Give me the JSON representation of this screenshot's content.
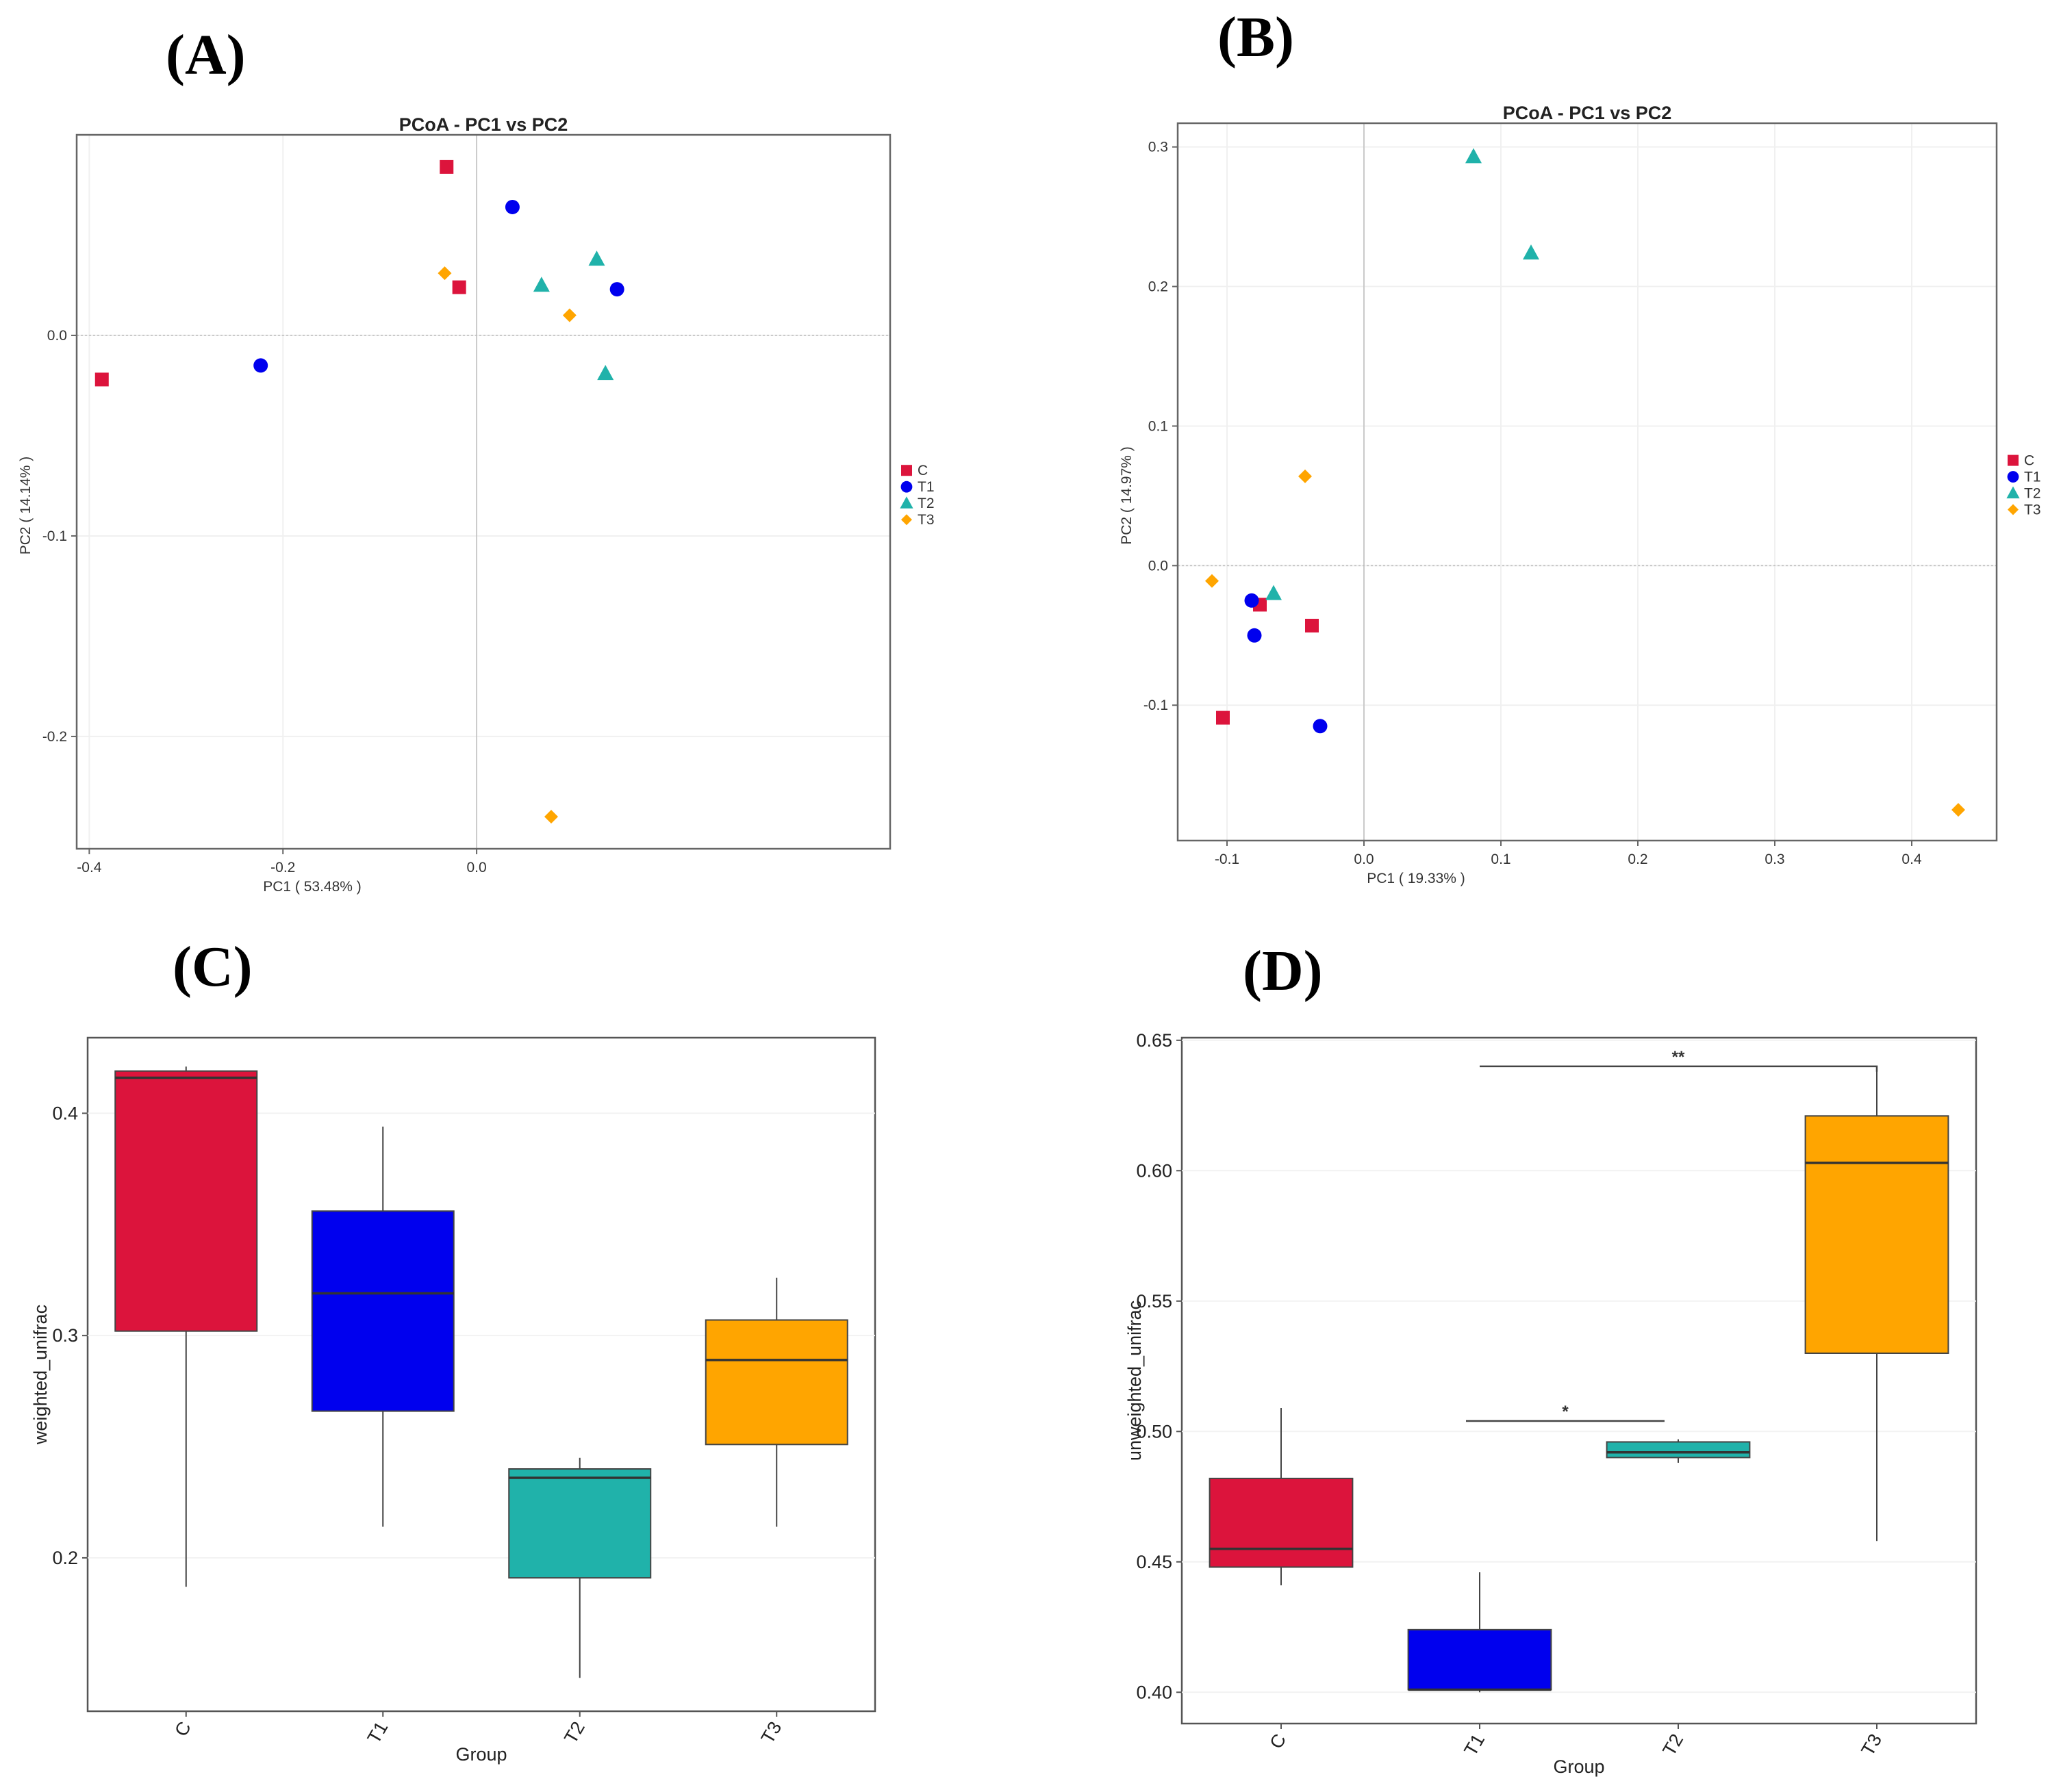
{
  "colors": {
    "C": "#dc143c",
    "T1": "#0000ee",
    "T2": "#20b2aa",
    "T3": "#ffa500"
  },
  "panels": {
    "A": "(A)",
    "B": "(B)",
    "C": "(C)",
    "D": "(D)"
  },
  "chart_data": [
    {
      "id": "A",
      "type": "scatter",
      "title": "PCoA - PC1 vs PC2",
      "xlabel": "PC1 ( 53.48% )",
      "ylabel": "PC2 ( 14.14% )",
      "xlim": [
        -0.413,
        0.427
      ],
      "ylim": [
        -0.256,
        0.1
      ],
      "xticks": [
        {
          "v": -0.4,
          "l": "-0.4"
        },
        {
          "v": -0.2,
          "l": "-0.2"
        },
        {
          "v": 0,
          "l": "0.0"
        }
      ],
      "yticks": [
        {
          "v": 0,
          "l": "0.0"
        },
        {
          "v": -0.1,
          "l": "-0.1"
        },
        {
          "v": -0.2,
          "l": "-0.2"
        }
      ],
      "legend": "right",
      "series": [
        {
          "name": "C",
          "marker": "square",
          "points": [
            [
              -0.387,
              -0.022
            ],
            [
              -0.031,
              0.084
            ],
            [
              -0.018,
              0.024
            ]
          ]
        },
        {
          "name": "T1",
          "marker": "circle",
          "points": [
            [
              -0.223,
              -0.015
            ],
            [
              0.037,
              0.064
            ],
            [
              0.145,
              0.023
            ]
          ]
        },
        {
          "name": "T2",
          "marker": "triangle",
          "points": [
            [
              0.067,
              0.025
            ],
            [
              0.124,
              0.038
            ],
            [
              0.133,
              -0.019
            ]
          ]
        },
        {
          "name": "T3",
          "marker": "diamond",
          "points": [
            [
              -0.033,
              0.031
            ],
            [
              0.096,
              0.01
            ],
            [
              0.077,
              -0.24
            ]
          ]
        }
      ]
    },
    {
      "id": "B",
      "type": "scatter",
      "title": "PCoA - PC1 vs PC2",
      "xlabel": "PC1 ( 19.33% )",
      "ylabel": "PC2 ( 14.97% )",
      "xlim": [
        -0.136,
        0.462
      ],
      "ylim": [
        -0.197,
        0.317
      ],
      "xticks": [
        {
          "v": -0.1,
          "l": "-0.1"
        },
        {
          "v": 0,
          "l": "0.0"
        },
        {
          "v": 0.1,
          "l": "0.1"
        },
        {
          "v": 0.2,
          "l": "0.2"
        },
        {
          "v": 0.3,
          "l": "0.3"
        },
        {
          "v": 0.4,
          "l": "0.4"
        }
      ],
      "yticks": [
        {
          "v": 0.3,
          "l": "0.3"
        },
        {
          "v": 0.2,
          "l": "0.2"
        },
        {
          "v": 0.1,
          "l": "0.1"
        },
        {
          "v": 0,
          "l": "0.0"
        },
        {
          "v": -0.1,
          "l": "-0.1"
        }
      ],
      "legend": "right",
      "series": [
        {
          "name": "C",
          "marker": "square",
          "points": [
            [
              -0.076,
              -0.028
            ],
            [
              -0.038,
              -0.043
            ],
            [
              -0.103,
              -0.109
            ]
          ]
        },
        {
          "name": "T1",
          "marker": "circle",
          "points": [
            [
              -0.082,
              -0.025
            ],
            [
              -0.08,
              -0.05
            ],
            [
              -0.032,
              -0.115
            ]
          ]
        },
        {
          "name": "T2",
          "marker": "triangle",
          "points": [
            [
              0.08,
              0.293
            ],
            [
              0.122,
              0.224
            ],
            [
              -0.066,
              -0.02
            ]
          ]
        },
        {
          "name": "T3",
          "marker": "diamond",
          "points": [
            [
              -0.043,
              0.064
            ],
            [
              -0.111,
              -0.011
            ],
            [
              0.434,
              -0.175
            ]
          ]
        }
      ]
    },
    {
      "id": "C",
      "type": "box",
      "xlabel": "Group",
      "ylabel": "weighted_unifrac",
      "ylim": [
        0.131,
        0.434
      ],
      "yticks": [
        {
          "v": 0.2,
          "l": "0.2"
        },
        {
          "v": 0.3,
          "l": "0.3"
        },
        {
          "v": 0.4,
          "l": "0.4"
        }
      ],
      "categories": [
        "C",
        "T1",
        "T2",
        "T3"
      ],
      "boxes": [
        {
          "group": "C",
          "min": 0.187,
          "q1": 0.302,
          "median": 0.416,
          "q3": 0.419,
          "max": 0.421
        },
        {
          "group": "T1",
          "min": 0.214,
          "q1": 0.266,
          "median": 0.319,
          "q3": 0.356,
          "max": 0.394
        },
        {
          "group": "T2",
          "min": 0.146,
          "q1": 0.191,
          "median": 0.236,
          "q3": 0.24,
          "max": 0.245
        },
        {
          "group": "T3",
          "min": 0.214,
          "q1": 0.251,
          "median": 0.289,
          "q3": 0.307,
          "max": 0.326
        }
      ],
      "significance": []
    },
    {
      "id": "D",
      "type": "box",
      "xlabel": "Group",
      "ylabel": "unweighted_unifrac",
      "ylim": [
        0.388,
        0.651
      ],
      "yticks": [
        {
          "v": 0.4,
          "l": "0.40"
        },
        {
          "v": 0.45,
          "l": "0.45"
        },
        {
          "v": 0.5,
          "l": "0.50"
        },
        {
          "v": 0.55,
          "l": "0.55"
        },
        {
          "v": 0.6,
          "l": "0.60"
        },
        {
          "v": 0.65,
          "l": "0.65"
        }
      ],
      "categories": [
        "C",
        "T1",
        "T2",
        "T3"
      ],
      "boxes": [
        {
          "group": "C",
          "min": 0.441,
          "q1": 0.448,
          "median": 0.455,
          "q3": 0.482,
          "max": 0.509
        },
        {
          "group": "T1",
          "min": 0.4,
          "q1": 0.401,
          "median": 0.401,
          "q3": 0.424,
          "max": 0.446
        },
        {
          "group": "T2",
          "min": 0.488,
          "q1": 0.49,
          "median": 0.492,
          "q3": 0.496,
          "max": 0.497
        },
        {
          "group": "T3",
          "min": 0.458,
          "q1": 0.53,
          "median": 0.603,
          "q3": 0.621,
          "max": 0.64
        }
      ],
      "significance": [
        {
          "from": "T1",
          "to": "T3",
          "y": 0.64,
          "label": "**"
        },
        {
          "from": "T1",
          "to": "T2",
          "y": 0.504,
          "label": "*"
        }
      ]
    }
  ]
}
